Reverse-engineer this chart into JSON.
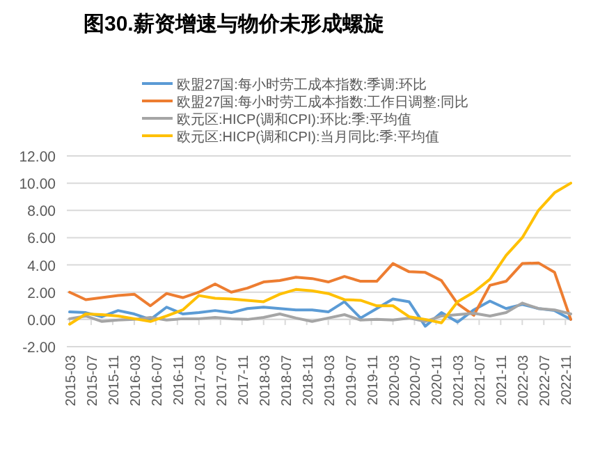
{
  "chart_data": {
    "type": "line",
    "title": "图30.薪资增速与物价未形成螺旋",
    "x": [
      "2015-03",
      "2015-06",
      "2015-09",
      "2015-12",
      "2016-03",
      "2016-06",
      "2016-09",
      "2016-12",
      "2017-03",
      "2017-06",
      "2017-09",
      "2017-12",
      "2018-03",
      "2018-06",
      "2018-09",
      "2018-12",
      "2019-03",
      "2019-06",
      "2019-09",
      "2019-12",
      "2020-03",
      "2020-06",
      "2020-09",
      "2020-12",
      "2021-03",
      "2021-06",
      "2021-09",
      "2021-12",
      "2022-03",
      "2022-06",
      "2022-09",
      "2022-12"
    ],
    "series": [
      {
        "name": "欧盟27国:每小时劳工成本指数:季调:环比",
        "color": "#5b9bd5",
        "values": [
          0.55,
          0.5,
          0.2,
          0.65,
          0.4,
          0.0,
          0.9,
          0.4,
          0.5,
          0.65,
          0.5,
          0.8,
          0.9,
          0.8,
          0.7,
          0.7,
          0.55,
          1.3,
          0.1,
          0.8,
          1.5,
          1.3,
          -0.5,
          0.5,
          -0.2,
          0.7,
          1.35,
          0.8,
          1.1,
          0.8,
          0.65,
          0.0
        ]
      },
      {
        "name": "欧盟27国:每小时劳工成本指数:工作日调整:同比",
        "color": "#ed7d31",
        "values": [
          2.0,
          1.45,
          1.6,
          1.75,
          1.85,
          1.0,
          1.9,
          1.6,
          2.0,
          2.6,
          2.0,
          2.3,
          2.75,
          2.85,
          3.1,
          3.0,
          2.75,
          3.15,
          2.8,
          2.8,
          4.1,
          3.5,
          3.45,
          2.85,
          1.15,
          0.3,
          2.5,
          2.8,
          4.1,
          4.15,
          3.45,
          0.0
        ]
      },
      {
        "name": "欧元区:HICP(调和CPI):环比:季:平均值",
        "color": "#a5a5a5",
        "values": [
          0.05,
          0.25,
          -0.15,
          -0.05,
          0.0,
          0.15,
          -0.05,
          0.05,
          0.05,
          0.15,
          0.05,
          0.0,
          0.15,
          0.4,
          0.1,
          -0.15,
          0.1,
          0.35,
          -0.05,
          0.0,
          -0.05,
          0.1,
          -0.15,
          0.25,
          0.35,
          0.45,
          0.25,
          0.5,
          1.2,
          0.8,
          0.7,
          0.4
        ]
      },
      {
        "name": "欧元区:HICP(调和CPI):当月同比:季:平均值",
        "color": "#ffc000",
        "values": [
          -0.35,
          0.4,
          0.35,
          0.25,
          0.05,
          -0.15,
          0.25,
          0.7,
          1.75,
          1.55,
          1.5,
          1.4,
          1.3,
          1.85,
          2.2,
          2.1,
          1.9,
          1.45,
          1.4,
          1.0,
          1.0,
          0.2,
          0.0,
          -0.25,
          1.3,
          2.0,
          2.95,
          4.7,
          6.0,
          8.0,
          9.3,
          10.0
        ]
      }
    ],
    "xlim": [
      "2015-03",
      "2022-12"
    ],
    "xticks": [
      "2015-03",
      "2015-07",
      "2015-11",
      "2016-03",
      "2016-07",
      "2016-11",
      "2017-03",
      "2017-07",
      "2017-11",
      "2018-03",
      "2018-07",
      "2018-11",
      "2019-03",
      "2019-07",
      "2019-11",
      "2020-03",
      "2020-07",
      "2020-11",
      "2021-03",
      "2021-07",
      "2021-11",
      "2022-03",
      "2022-07",
      "2022-11"
    ],
    "ylim": [
      -2,
      12
    ],
    "yticks": [
      {
        "value": -2,
        "label": "-2.00"
      },
      {
        "value": 0,
        "label": "0.00"
      },
      {
        "value": 2,
        "label": "2.00"
      },
      {
        "value": 4,
        "label": "4.00"
      },
      {
        "value": 6,
        "label": "6.00"
      },
      {
        "value": 8,
        "label": "8.00"
      },
      {
        "value": 10,
        "label": "10.00"
      },
      {
        "value": 12,
        "label": "12.00"
      }
    ],
    "grid": "y",
    "legend": "top",
    "marker": "none",
    "line_style": "solid"
  }
}
